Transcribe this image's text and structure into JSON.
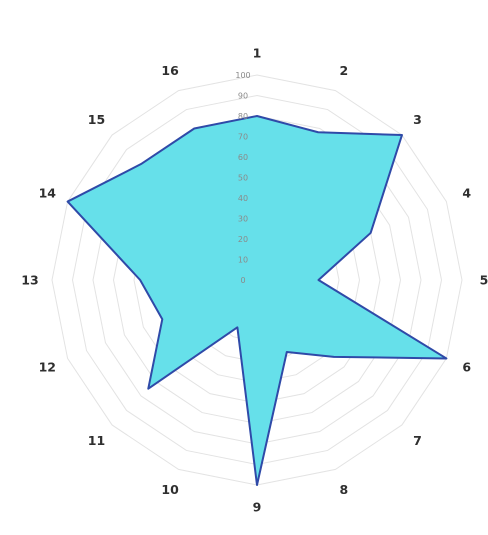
{
  "chart_data": {
    "type": "radar",
    "categories": [
      "1",
      "2",
      "3",
      "4",
      "5",
      "6",
      "7",
      "8",
      "9",
      "10",
      "11",
      "12",
      "13",
      "14",
      "15",
      "16"
    ],
    "series": [
      {
        "values": [
          80,
          78,
          100,
          60,
          30,
          100,
          53,
          38,
          100,
          25,
          75,
          50,
          57,
          100,
          80,
          80
        ]
      }
    ],
    "r_ticks": [
      "0",
      "10",
      "20",
      "30",
      "40",
      "50",
      "60",
      "70",
      "80",
      "90",
      "100"
    ],
    "rlim": [
      0,
      100
    ],
    "grid": true,
    "colors": {
      "fill": "#66e0ea",
      "stroke": "#2f4aa8",
      "grid": "#e3e3e3"
    }
  }
}
